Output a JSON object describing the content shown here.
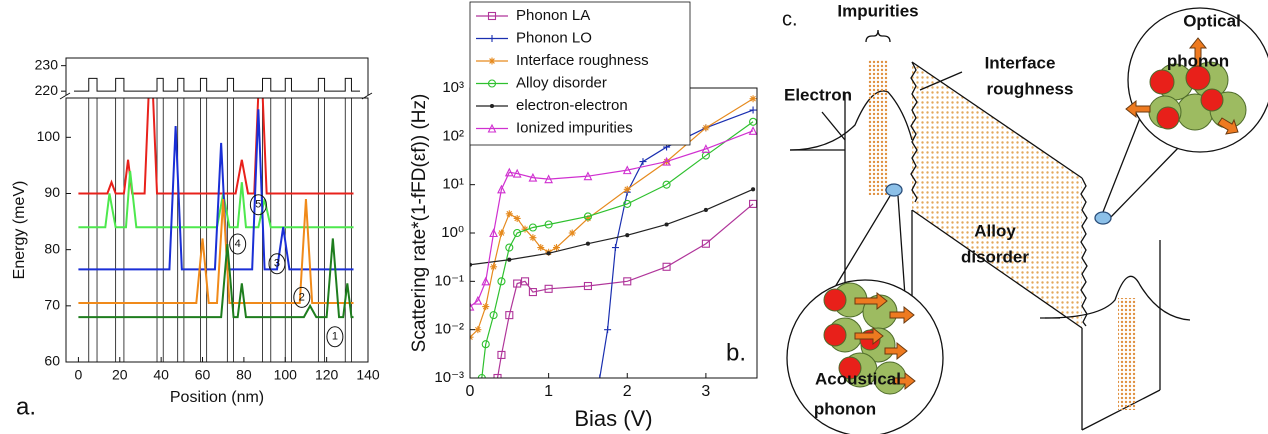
{
  "chart_data": [
    {
      "type": "line",
      "panel_label": "a.",
      "x_label": "Position (nm)",
      "y_label": "Energy (meV)",
      "xlim": [
        -6,
        140
      ],
      "xticks": [
        0,
        20,
        40,
        60,
        80,
        100,
        120,
        140
      ],
      "ylim": [
        60,
        107
      ],
      "yticks": [
        60,
        70,
        80,
        90,
        100
      ],
      "upper_ylim": [
        218.5,
        233
      ],
      "upper_yticks": [
        220,
        230
      ],
      "barrier_profile": {
        "low": 220,
        "high": 225,
        "intervals": [
          [
            5,
            9
          ],
          [
            18,
            22
          ],
          [
            38,
            41
          ],
          [
            48,
            51
          ],
          [
            59,
            62
          ],
          [
            72,
            75
          ],
          [
            89,
            93
          ],
          [
            100,
            103
          ],
          [
            116,
            119
          ],
          [
            129,
            132
          ]
        ]
      },
      "series": [
        {
          "color": "#e8211b",
          "x": [
            0,
            14,
            16,
            18,
            22,
            24,
            26,
            32,
            35,
            38,
            76,
            79,
            82,
            85,
            88,
            91,
            133
          ],
          "values": [
            90,
            90,
            92,
            90,
            90,
            96,
            90,
            90,
            117,
            90,
            90,
            96,
            90,
            90,
            117,
            90,
            90
          ]
        },
        {
          "color": "#4de84d",
          "x": [
            0,
            13,
            15,
            18,
            23,
            25,
            28,
            67,
            70,
            73,
            77,
            79,
            81,
            87,
            90,
            93,
            133
          ],
          "values": [
            84,
            84,
            90,
            84,
            84,
            94,
            84,
            84,
            90,
            84,
            84,
            92,
            84,
            84,
            89,
            84,
            84
          ]
        },
        {
          "color": "#1a2fd6",
          "x": [
            0,
            44,
            47,
            50,
            66,
            69,
            72,
            84,
            87,
            90,
            96,
            99,
            102,
            133
          ],
          "values": [
            76.5,
            76.5,
            102,
            76.5,
            76.5,
            99,
            76.5,
            76.5,
            105,
            76.5,
            76.5,
            84,
            76.5,
            76.5
          ]
        },
        {
          "color": "#f08a1a",
          "x": [
            0,
            57,
            60,
            63,
            67,
            70,
            73,
            107,
            110,
            113,
            133
          ],
          "values": [
            70.5,
            70.5,
            82,
            70.5,
            70.5,
            89,
            70.5,
            70.5,
            89,
            70.5,
            70.5
          ]
        },
        {
          "color": "#1e7d1e",
          "x": [
            0,
            69,
            72,
            75,
            77,
            79,
            81,
            109,
            112,
            115,
            120,
            123,
            126,
            128,
            130,
            132,
            133
          ],
          "values": [
            68,
            68,
            81,
            68,
            68,
            74,
            68,
            68,
            70,
            68,
            68,
            82,
            68,
            68,
            74,
            68,
            68
          ]
        }
      ],
      "annotations": [
        {
          "text": "5",
          "x": 87,
          "y": 88
        },
        {
          "text": "4",
          "x": 77,
          "y": 81
        },
        {
          "text": "3",
          "x": 96,
          "y": 77.5
        },
        {
          "text": "2",
          "x": 108,
          "y": 71.5
        },
        {
          "text": "1",
          "x": 124,
          "y": 64.5
        }
      ]
    },
    {
      "type": "line",
      "panel_label": "b.",
      "x_label": "Bias (V)",
      "y_label": "Scattering rate*(1-fFD(εf)) (Hz)",
      "log_y": true,
      "legend": "upper left",
      "xlim": [
        0,
        3.65
      ],
      "xticks": [
        0,
        1,
        2,
        3
      ],
      "ylim": [
        0.001,
        1000
      ],
      "yticks": [
        {
          "value": 0.001,
          "label": "10⁻³"
        },
        {
          "value": 0.01,
          "label": "10⁻²"
        },
        {
          "value": 0.1,
          "label": "10⁻¹"
        },
        {
          "value": 1,
          "label": "10⁰"
        },
        {
          "value": 10,
          "label": "10¹"
        },
        {
          "value": 100,
          "label": "10²"
        },
        {
          "value": 1000,
          "label": "10³"
        }
      ],
      "series": [
        {
          "name": "Phonon LA",
          "color": "#b0359a",
          "marker": "square",
          "x": [
            0.35,
            0.4,
            0.5,
            0.6,
            0.7,
            0.8,
            1.0,
            1.5,
            2.0,
            2.5,
            3.0,
            3.6
          ],
          "values": [
            0.001,
            0.003,
            0.02,
            0.09,
            0.1,
            0.06,
            0.07,
            0.08,
            0.1,
            0.2,
            0.6,
            4
          ]
        },
        {
          "name": "Phonon LO",
          "color": "#1a2fb0",
          "marker": "plus",
          "x": [
            1.65,
            1.75,
            1.85,
            2.0,
            2.2,
            2.5,
            3.0,
            3.6
          ],
          "values": [
            0.001,
            0.01,
            0.5,
            7,
            30,
            60,
            150,
            350
          ]
        },
        {
          "name": "Interface roughness",
          "color": "#e68a1e",
          "marker": "star",
          "x": [
            0,
            0.1,
            0.2,
            0.3,
            0.4,
            0.5,
            0.6,
            0.7,
            0.8,
            0.9,
            1.0,
            1.1,
            1.3,
            1.5,
            2.0,
            2.5,
            3.0,
            3.6
          ],
          "values": [
            0.007,
            0.01,
            0.03,
            0.2,
            1,
            2.5,
            2,
            1.2,
            0.8,
            0.5,
            0.4,
            0.5,
            1,
            2,
            8,
            30,
            150,
            600
          ]
        },
        {
          "name": "Alloy disorder",
          "color": "#2ec02e",
          "marker": "circle",
          "x": [
            0.15,
            0.2,
            0.3,
            0.4,
            0.5,
            0.6,
            0.8,
            1.0,
            1.5,
            2.0,
            2.5,
            3.0,
            3.6
          ],
          "values": [
            0.001,
            0.005,
            0.02,
            0.1,
            0.5,
            1,
            1.3,
            1.5,
            2.2,
            4,
            10,
            40,
            200
          ]
        },
        {
          "name": "electron-electron",
          "color": "#222222",
          "marker": "dot",
          "x": [
            0,
            0.5,
            1.0,
            1.5,
            2.0,
            2.5,
            3.0,
            3.6
          ],
          "values": [
            0.22,
            0.28,
            0.38,
            0.6,
            0.9,
            1.5,
            3,
            8
          ]
        },
        {
          "name": "Ionized impurities",
          "color": "#d030d0",
          "marker": "triangle",
          "x": [
            0,
            0.1,
            0.2,
            0.3,
            0.4,
            0.5,
            0.6,
            0.8,
            1.0,
            1.5,
            2.0,
            2.5,
            3.0,
            3.6
          ],
          "values": [
            0.03,
            0.04,
            0.1,
            1,
            8,
            18,
            17,
            14,
            13,
            15,
            20,
            30,
            55,
            130
          ]
        }
      ]
    }
  ],
  "diagram": {
    "panel_label": "c.",
    "impurities": "Impurities",
    "interface_roughness": [
      "Interface",
      "roughness"
    ],
    "electron": "Electron",
    "optical_phonon": [
      "Optical",
      "phonon"
    ],
    "alloy_disorder": [
      "Alloy",
      "disorder"
    ],
    "acoustical_phonon": [
      "Acoustical",
      "phonon"
    ]
  }
}
